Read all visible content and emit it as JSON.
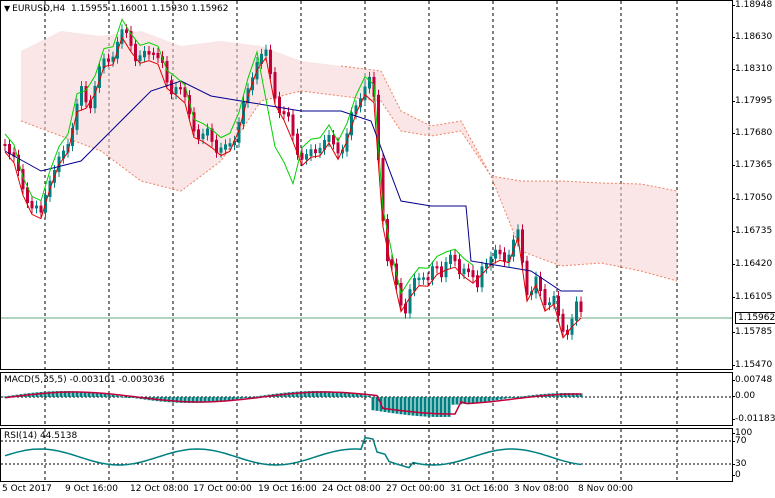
{
  "symbol": "EURUSD,H4",
  "ohlc": "1.15955 1.16001 1.15930 1.15962",
  "price_axis": [
    "1.18948",
    "1.18630",
    "1.18310",
    "1.17995",
    "1.17680",
    "1.17365",
    "1.17050",
    "1.16735",
    "1.16420",
    "1.16105",
    "1.15785",
    "1.15470"
  ],
  "current_price": "1.15962",
  "macd": {
    "label": "MACD(5,35,5) -0.003101 -0.003036",
    "ticks": [
      "0.00748",
      "0.00",
      "-0.01183"
    ]
  },
  "rsi": {
    "label": "RSI(14) 44.5138",
    "ticks": [
      "100",
      "70",
      "30",
      "0"
    ]
  },
  "time_axis": [
    "5 Oct 2017",
    "9 Oct 16:00",
    "12 Oct 08:00",
    "17 Oct 00:00",
    "19 Oct 16:00",
    "24 Oct 08:00",
    "27 Oct 00:00",
    "31 Oct 16:00",
    "3 Nov 08:00",
    "8 Nov 00:00"
  ],
  "colors": {
    "bull": "#008080",
    "bear": "#c0003a",
    "tenkan": "#e00000",
    "kijun": "#00008b",
    "chikou": "#00d000",
    "cloud": "#f08060",
    "macd_signal": "#c0003a"
  }
}
